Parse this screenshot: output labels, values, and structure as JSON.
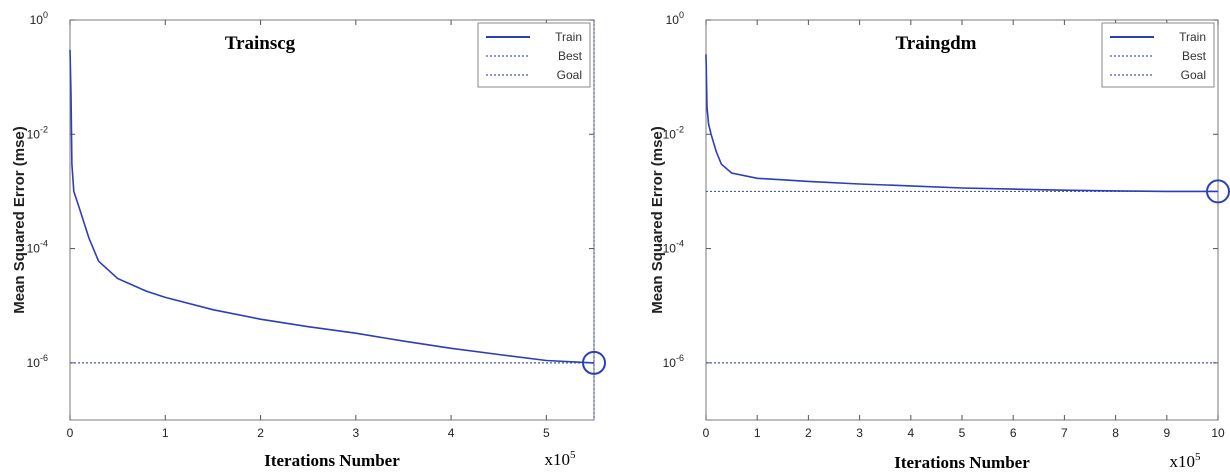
{
  "chart_data": [
    {
      "type": "line",
      "title": "Trainscg",
      "xlabel": "Iterations Number",
      "ylabel": "Mean Squared Error  (mse)",
      "x_multiplier": {
        "base": "x10",
        "exp": "5"
      },
      "xlim": [
        0,
        5.5
      ],
      "xticks": [
        "0",
        "1",
        "2",
        "3",
        "4",
        "5"
      ],
      "ylim": [
        1e-07,
        1
      ],
      "yscale": "log",
      "yticks": [
        {
          "base": "10",
          "exp": "0"
        },
        {
          "base": "10",
          "exp": "-2"
        },
        {
          "base": "10",
          "exp": "-4"
        },
        {
          "base": "10",
          "exp": "-6"
        }
      ],
      "legend": [
        "Train",
        "Best",
        "Goal"
      ],
      "legend_position": "top-right",
      "best_line_x": 5.5,
      "goal_y": 1e-06,
      "best_point": {
        "x": 5.5,
        "y": 1e-06
      },
      "series": [
        {
          "name": "Train",
          "x": [
            0,
            0.01,
            0.02,
            0.04,
            0.1,
            0.2,
            0.3,
            0.5,
            0.8,
            1.0,
            1.5,
            2.0,
            2.5,
            3.0,
            3.5,
            4.0,
            4.5,
            5.0,
            5.5
          ],
          "y": [
            0.3,
            0.05,
            0.003,
            0.001,
            0.0005,
            0.00015,
            6e-05,
            3e-05,
            1.8e-05,
            1.4e-05,
            8.5e-06,
            5.8e-06,
            4.3e-06,
            3.3e-06,
            2.4e-06,
            1.8e-06,
            1.4e-06,
            1.1e-06,
            1e-06
          ]
        }
      ]
    },
    {
      "type": "line",
      "title": "Traingdm",
      "xlabel": "Iterations Number",
      "ylabel": "Mean Squared Error  (mse)",
      "x_multiplier": {
        "base": "x10",
        "exp": "5"
      },
      "xlim": [
        0,
        10
      ],
      "xticks": [
        "0",
        "1",
        "2",
        "3",
        "4",
        "5",
        "6",
        "7",
        "8",
        "9",
        "10"
      ],
      "ylim": [
        1e-07,
        1
      ],
      "yscale": "log",
      "yticks": [
        {
          "base": "10",
          "exp": "0"
        },
        {
          "base": "10",
          "exp": "-2"
        },
        {
          "base": "10",
          "exp": "-4"
        },
        {
          "base": "10",
          "exp": "-6"
        }
      ],
      "legend": [
        "Train",
        "Best",
        "Goal"
      ],
      "legend_position": "top-right",
      "best_y": 0.001,
      "goal_y": 1e-06,
      "best_point": {
        "x": 10,
        "y": 0.001
      },
      "series": [
        {
          "name": "Train",
          "x": [
            0,
            0.02,
            0.05,
            0.1,
            0.2,
            0.3,
            0.5,
            1.0,
            1.5,
            2.0,
            3.0,
            4.0,
            5.0,
            6.0,
            7.0,
            8.0,
            9.0,
            10.0
          ],
          "y": [
            0.25,
            0.03,
            0.015,
            0.01,
            0.005,
            0.003,
            0.0021,
            0.0017,
            0.0016,
            0.0015,
            0.00135,
            0.00125,
            0.00115,
            0.0011,
            0.00105,
            0.00102,
            0.001,
            0.001
          ]
        }
      ]
    }
  ]
}
